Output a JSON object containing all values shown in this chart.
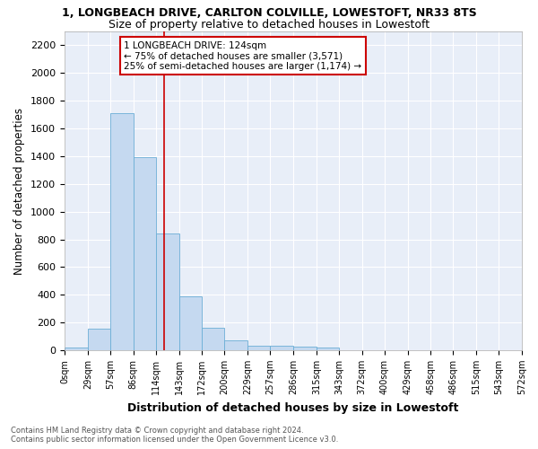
{
  "title": "1, LONGBEACH DRIVE, CARLTON COLVILLE, LOWESTOFT, NR33 8TS",
  "subtitle": "Size of property relative to detached houses in Lowestoft",
  "xlabel": "Distribution of detached houses by size in Lowestoft",
  "ylabel": "Number of detached properties",
  "bar_color": "#c5d9f0",
  "bar_edge_color": "#6baed6",
  "background_color": "#e8eef8",
  "grid_color": "#ffffff",
  "bin_labels": [
    "0sqm",
    "29sqm",
    "57sqm",
    "86sqm",
    "114sqm",
    "143sqm",
    "172sqm",
    "200sqm",
    "229sqm",
    "257sqm",
    "286sqm",
    "315sqm",
    "343sqm",
    "372sqm",
    "400sqm",
    "429sqm",
    "458sqm",
    "486sqm",
    "515sqm",
    "543sqm",
    "572sqm"
  ],
  "bar_values": [
    20,
    155,
    1710,
    1390,
    840,
    390,
    165,
    70,
    30,
    30,
    25,
    20,
    0,
    0,
    0,
    0,
    0,
    0,
    0,
    0
  ],
  "bin_edges": [
    0,
    29,
    57,
    86,
    114,
    143,
    172,
    200,
    229,
    257,
    286,
    315,
    343,
    372,
    400,
    429,
    458,
    486,
    515,
    543,
    572
  ],
  "vline_x": 124,
  "vline_color": "#cc0000",
  "ylim": [
    0,
    2300
  ],
  "yticks": [
    0,
    200,
    400,
    600,
    800,
    1000,
    1200,
    1400,
    1600,
    1800,
    2000,
    2200
  ],
  "annotation_title": "1 LONGBEACH DRIVE: 124sqm",
  "annotation_line1": "← 75% of detached houses are smaller (3,571)",
  "annotation_line2": "25% of semi-detached houses are larger (1,174) →",
  "annotation_box_color": "#ffffff",
  "annotation_box_edge": "#cc0000",
  "footer_line1": "Contains HM Land Registry data © Crown copyright and database right 2024.",
  "footer_line2": "Contains public sector information licensed under the Open Government Licence v3.0.",
  "fig_width": 6.0,
  "fig_height": 5.0,
  "title_fontsize": 9,
  "subtitle_fontsize": 9,
  "xlabel_fontsize": 9,
  "ylabel_fontsize": 8.5,
  "footer_fontsize": 6
}
